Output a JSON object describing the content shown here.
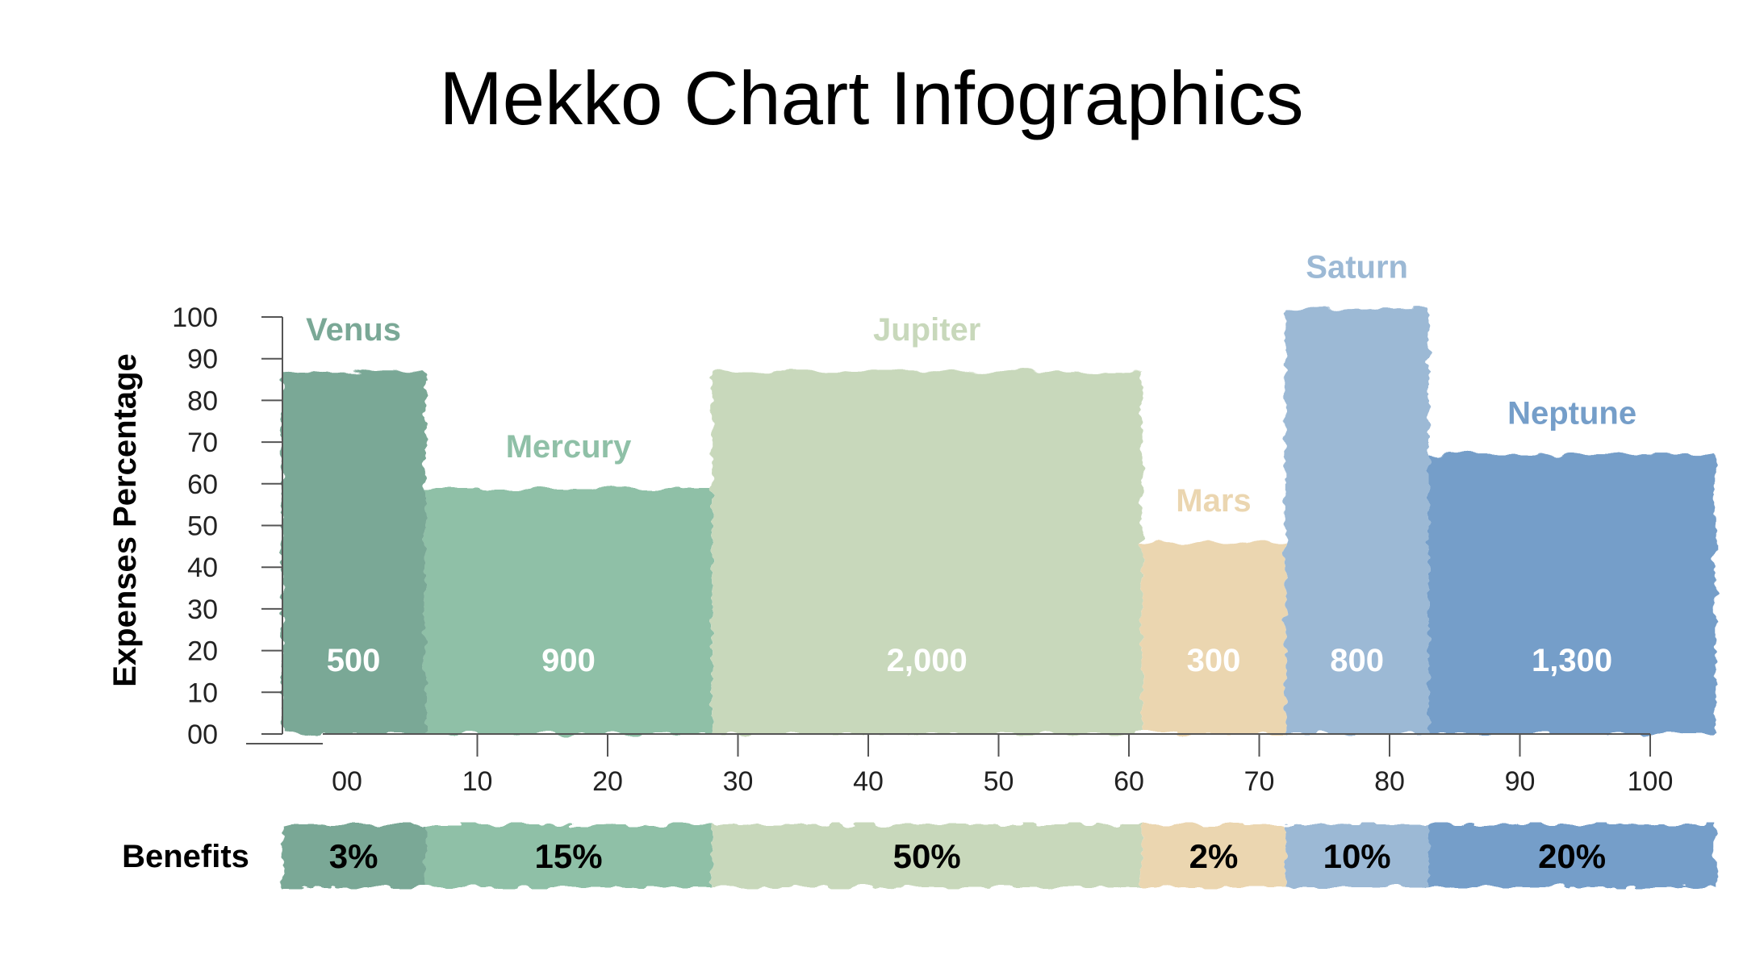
{
  "chart_data": {
    "type": "bar",
    "subtype": "mekko",
    "title": "Mekko Chart Infographics",
    "ylabel": "Expenses Percentage",
    "xlabel": "",
    "ylim": [
      0,
      100
    ],
    "xlim": [
      0,
      100
    ],
    "y_ticks": [
      "00",
      "10",
      "20",
      "30",
      "40",
      "50",
      "60",
      "70",
      "80",
      "90",
      "100"
    ],
    "x_ticks": [
      "00",
      "10",
      "20",
      "30",
      "40",
      "50",
      "60",
      "70",
      "80",
      "90",
      "100"
    ],
    "grid": false,
    "categories": [
      "Venus",
      "Mercury",
      "Jupiter",
      "Mars",
      "Saturn",
      "Neptune"
    ],
    "values": [
      500,
      900,
      2000,
      300,
      800,
      1300
    ],
    "value_labels": [
      "500",
      "900",
      "2,000",
      "300",
      "800",
      "1,300"
    ],
    "heights": [
      87,
      59,
      87,
      46,
      102,
      67
    ],
    "x_start": [
      -5,
      6,
      28,
      61,
      72,
      83
    ],
    "x_end": [
      6,
      28,
      61,
      72,
      83,
      105
    ],
    "colors": [
      "#7aa896",
      "#8fc0a7",
      "#c8d8bb",
      "#ebd6b0",
      "#9cb9d5",
      "#759ec9"
    ],
    "label_colors": [
      "#7aa896",
      "#8fc0a7",
      "#c8d8bb",
      "#ebd6b0",
      "#9cb9d5",
      "#759ec9"
    ],
    "benefits_label": "Benefits",
    "benefits": [
      "3%",
      "15%",
      "50%",
      "2%",
      "10%",
      "20%"
    ]
  }
}
